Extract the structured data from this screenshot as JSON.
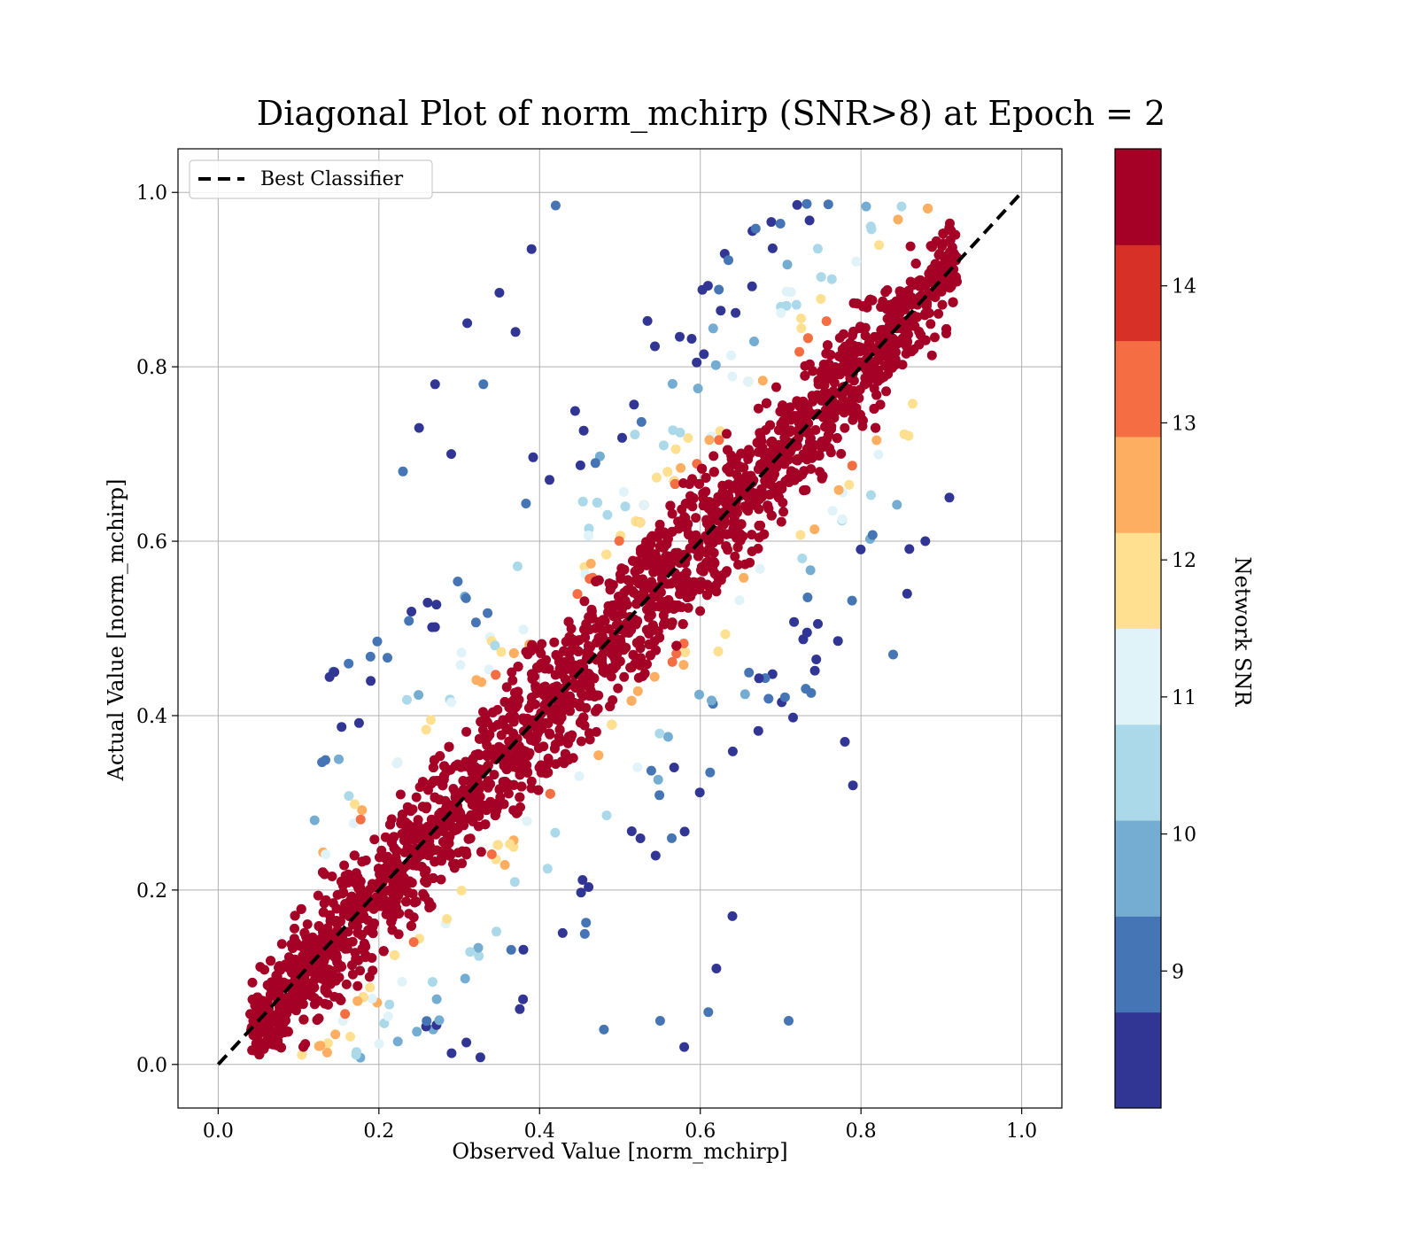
{
  "chart_data": {
    "type": "scatter",
    "title": "Diagonal Plot of norm_mchirp (SNR>8) at Epoch = 2",
    "xlabel": "Observed Value [norm_mchirp]",
    "ylabel": "Actual Value [norm_mchirp]",
    "xlim": [
      -0.05,
      1.05
    ],
    "ylim": [
      -0.05,
      1.05
    ],
    "xticks": [
      "0.0",
      "0.2",
      "0.4",
      "0.6",
      "0.8",
      "1.0"
    ],
    "yticks": [
      "0.0",
      "0.2",
      "0.4",
      "0.6",
      "0.8",
      "1.0"
    ],
    "grid": true,
    "legend": {
      "placement": "upper-left",
      "entries": [
        "Best Classifier"
      ]
    },
    "reference_line": {
      "name": "Best Classifier",
      "x": [
        0,
        1
      ],
      "y": [
        0,
        1
      ],
      "style": "dashed",
      "color": "#000000"
    },
    "colorbar": {
      "label": "Network SNR",
      "range": [
        8,
        15
      ],
      "ticks": [
        "9",
        "10",
        "11",
        "12",
        "13",
        "14"
      ],
      "colors": [
        "#313695",
        "#4575b4",
        "#74add1",
        "#abd9e9",
        "#e0f3f8",
        "#fee090",
        "#fdae61",
        "#f46d43",
        "#d73027",
        "#a50026"
      ]
    },
    "points_sample": [
      [
        0.42,
        0.985
      ],
      [
        0.39,
        0.935
      ],
      [
        0.35,
        0.885
      ],
      [
        0.25,
        0.73
      ],
      [
        0.27,
        0.78
      ],
      [
        0.33,
        0.78
      ],
      [
        0.29,
        0.7
      ],
      [
        0.23,
        0.68
      ],
      [
        0.31,
        0.85
      ],
      [
        0.37,
        0.84
      ],
      [
        0.79,
        0.32
      ],
      [
        0.71,
        0.05
      ],
      [
        0.61,
        0.06
      ],
      [
        0.62,
        0.11
      ],
      [
        0.64,
        0.17
      ],
      [
        0.91,
        0.65
      ],
      [
        0.88,
        0.6
      ],
      [
        0.84,
        0.47
      ],
      [
        0.78,
        0.37
      ],
      [
        0.55,
        0.05
      ],
      [
        0.15,
        0.35
      ],
      [
        0.12,
        0.28
      ],
      [
        0.48,
        0.04
      ],
      [
        0.58,
        0.02
      ],
      [
        0.5,
        0.5
      ]
    ]
  }
}
